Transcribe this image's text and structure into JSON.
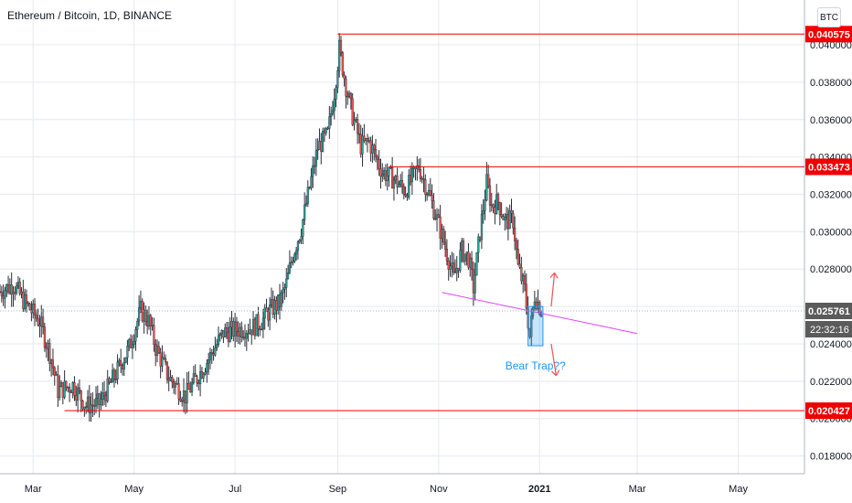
{
  "title": "Ethereum / Bitcoin, 1D, BINANCE",
  "currency_button": "BTC",
  "annotation_text": "Bear Trap??",
  "colors": {
    "up": "#26a69a",
    "down": "#ef5350",
    "candle": "#2a2e39",
    "level": "#ef0000",
    "trendline": "#e040fb",
    "trap_box": "#2196f3",
    "annotation": "#2196f3",
    "grid": "#e6e9ef",
    "current_price_bg": "#5b5b5b",
    "countdown_bg": "#5b5b5b"
  },
  "chart_data": {
    "type": "candlestick",
    "title": "Ethereum / Bitcoin, 1D, BINANCE",
    "ylim": [
      0.01705,
      0.0424
    ],
    "y_ticks": [
      "0.018000",
      "0.020000",
      "0.022000",
      "0.024000",
      "0.026000",
      "0.028000",
      "0.030000",
      "0.032000",
      "0.034000",
      "0.036000",
      "0.038000",
      "0.040000"
    ],
    "x_ticks": [
      {
        "label": "Mar",
        "date": "2020-03-01"
      },
      {
        "label": "May",
        "date": "2020-05-01"
      },
      {
        "label": "Jul",
        "date": "2020-07-01"
      },
      {
        "label": "Sep",
        "date": "2020-09-01"
      },
      {
        "label": "Nov",
        "date": "2020-11-01"
      },
      {
        "label": "2021",
        "date": "2021-01-01"
      },
      {
        "label": "Mar",
        "date": "2021-03-01"
      },
      {
        "label": "May",
        "date": "2021-05-01"
      }
    ],
    "x_range": [
      "2020-02-10",
      "2021-06-10"
    ],
    "price_path": [
      [
        "2020-02-10",
        0.0268
      ],
      [
        "2020-02-18",
        0.0272
      ],
      [
        "2020-02-25",
        0.0262
      ],
      [
        "2020-03-05",
        0.0252
      ],
      [
        "2020-03-12",
        0.0232
      ],
      [
        "2020-03-16",
        0.0215
      ],
      [
        "2020-03-25",
        0.0218
      ],
      [
        "2020-04-02",
        0.0207
      ],
      [
        "2020-04-10",
        0.0208
      ],
      [
        "2020-04-20",
        0.0224
      ],
      [
        "2020-04-28",
        0.0238
      ],
      [
        "2020-05-05",
        0.0258
      ],
      [
        "2020-05-10",
        0.0252
      ],
      [
        "2020-05-14",
        0.0238
      ],
      [
        "2020-05-22",
        0.0222
      ],
      [
        "2020-06-01",
        0.0212
      ],
      [
        "2020-06-08",
        0.0222
      ],
      [
        "2020-06-15",
        0.0232
      ],
      [
        "2020-06-24",
        0.0246
      ],
      [
        "2020-07-05",
        0.0248
      ],
      [
        "2020-07-12",
        0.0249
      ],
      [
        "2020-07-18",
        0.0253
      ],
      [
        "2020-07-22",
        0.0258
      ],
      [
        "2020-07-28",
        0.0262
      ],
      [
        "2020-08-01",
        0.0272
      ],
      [
        "2020-08-05",
        0.0288
      ],
      [
        "2020-08-10",
        0.0302
      ],
      [
        "2020-08-16",
        0.0328
      ],
      [
        "2020-08-20",
        0.0345
      ],
      [
        "2020-08-26",
        0.0352
      ],
      [
        "2020-08-30",
        0.0375
      ],
      [
        "2020-09-02",
        0.0398
      ],
      [
        "2020-09-06",
        0.0378
      ],
      [
        "2020-09-10",
        0.0362
      ],
      [
        "2020-09-15",
        0.0346
      ],
      [
        "2020-09-20",
        0.0348
      ],
      [
        "2020-09-28",
        0.0332
      ],
      [
        "2020-10-05",
        0.0328
      ],
      [
        "2020-10-12",
        0.0322
      ],
      [
        "2020-10-20",
        0.0335
      ],
      [
        "2020-10-27",
        0.0318
      ],
      [
        "2020-11-03",
        0.0298
      ],
      [
        "2020-11-08",
        0.0282
      ],
      [
        "2020-11-10",
        0.0275
      ],
      [
        "2020-11-15",
        0.029
      ],
      [
        "2020-11-19",
        0.0286
      ],
      [
        "2020-11-22",
        0.027
      ],
      [
        "2020-11-26",
        0.03
      ],
      [
        "2020-11-30",
        0.0326
      ],
      [
        "2020-12-03",
        0.0314
      ],
      [
        "2020-12-07",
        0.0316
      ],
      [
        "2020-12-11",
        0.0306
      ],
      [
        "2020-12-16",
        0.0306
      ],
      [
        "2020-12-19",
        0.0281
      ],
      [
        "2020-12-23",
        0.0269
      ],
      [
        "2020-12-26",
        0.0244
      ],
      [
        "2020-12-29",
        0.0266
      ],
      [
        "2021-01-02",
        0.0258
      ]
    ],
    "horizontal_levels": [
      {
        "label": "0.040575",
        "value": 0.040575,
        "from": "2020-09-01"
      },
      {
        "label": "0.033473",
        "value": 0.033473,
        "from": "2020-10-02"
      },
      {
        "label": "0.020427",
        "value": 0.020427,
        "from": "2020-03-20"
      }
    ],
    "trendline": {
      "from": [
        "2020-11-03",
        0.02675
      ],
      "to": [
        "2021-03-01",
        0.02455
      ]
    },
    "trap_box": {
      "x": [
        "2020-12-25",
        "2021-01-03"
      ],
      "y": [
        0.0239,
        0.026
      ]
    },
    "arrows": [
      {
        "direction": "up",
        "from": [
          "2021-01-08",
          0.026
        ],
        "to": [
          "2021-01-10",
          0.0278
        ]
      },
      {
        "direction": "down",
        "from": [
          "2021-01-08",
          0.024
        ],
        "to": [
          "2021-01-11",
          0.0223
        ]
      }
    ],
    "current_price": {
      "label": "0.025761",
      "value": 0.025761
    },
    "countdown": {
      "label": "22:32:16"
    }
  }
}
